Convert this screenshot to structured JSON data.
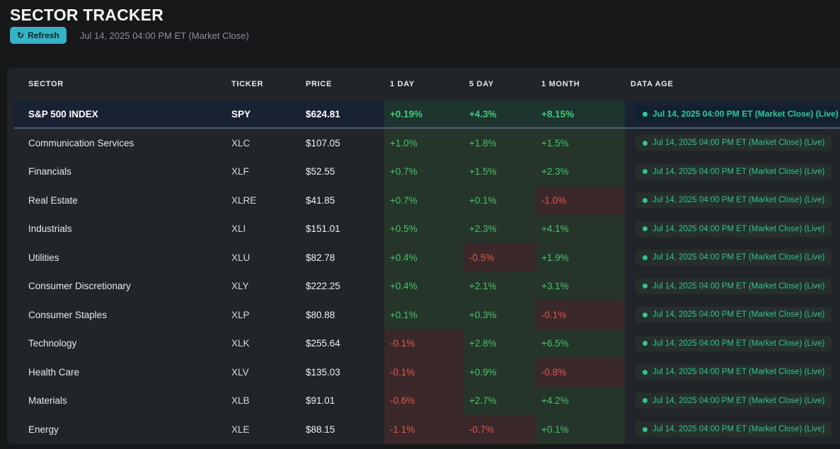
{
  "page": {
    "title": "SECTOR TRACKER",
    "timestamp": "Jul 14, 2025 04:00 PM ET (Market Close)"
  },
  "toolbar": {
    "refresh_label": "Refresh"
  },
  "icons": {
    "refresh_icon": "↻",
    "live_dot": "●"
  },
  "colors": {
    "accent_teal": "#33b3c4",
    "positive_green": "#46c46d",
    "negative_red": "#e8544e",
    "badge_green": "#33c391",
    "highlight_row_bg": "#192232",
    "highlight_row_border": "#4e5d7d",
    "positive_cell_bg": "#263529",
    "negative_cell_bg": "#3a282a",
    "card_bg": "#212529",
    "page_bg": "#17181a"
  },
  "table": {
    "columns": [
      "SECTOR",
      "TICKER",
      "PRICE",
      "1 DAY",
      "5 DAY",
      "1 MONTH",
      "DATA AGE"
    ],
    "rows": [
      {
        "sector": "S&P 500 INDEX",
        "ticker": "SPY",
        "price": "$624.81",
        "day1": "+0.19%",
        "day5": "+4.3%",
        "month1": "+8.15%",
        "data_age": "Jul 14, 2025 04:00 PM ET (Market Close) (Live)",
        "highlight": true
      },
      {
        "sector": "Communication Services",
        "ticker": "XLC",
        "price": "$107.05",
        "day1": "+1.0%",
        "day5": "+1.8%",
        "month1": "+1.5%",
        "data_age": "Jul 14, 2025 04:00 PM ET (Market Close) (Live)",
        "highlight": false
      },
      {
        "sector": "Financials",
        "ticker": "XLF",
        "price": "$52.55",
        "day1": "+0.7%",
        "day5": "+1.5%",
        "month1": "+2.3%",
        "data_age": "Jul 14, 2025 04:00 PM ET (Market Close) (Live)",
        "highlight": false
      },
      {
        "sector": "Real Estate",
        "ticker": "XLRE",
        "price": "$41.85",
        "day1": "+0.7%",
        "day5": "+0.1%",
        "month1": "-1.0%",
        "data_age": "Jul 14, 2025 04:00 PM ET (Market Close) (Live)",
        "highlight": false
      },
      {
        "sector": "Industrials",
        "ticker": "XLI",
        "price": "$151.01",
        "day1": "+0.5%",
        "day5": "+2.3%",
        "month1": "+4.1%",
        "data_age": "Jul 14, 2025 04:00 PM ET (Market Close) (Live)",
        "highlight": false
      },
      {
        "sector": "Utilities",
        "ticker": "XLU",
        "price": "$82.78",
        "day1": "+0.4%",
        "day5": "-0.5%",
        "month1": "+1.9%",
        "data_age": "Jul 14, 2025 04:00 PM ET (Market Close) (Live)",
        "highlight": false
      },
      {
        "sector": "Consumer Discretionary",
        "ticker": "XLY",
        "price": "$222.25",
        "day1": "+0.4%",
        "day5": "+2.1%",
        "month1": "+3.1%",
        "data_age": "Jul 14, 2025 04:00 PM ET (Market Close) (Live)",
        "highlight": false
      },
      {
        "sector": "Consumer Staples",
        "ticker": "XLP",
        "price": "$80.88",
        "day1": "+0.1%",
        "day5": "+0.3%",
        "month1": "-0.1%",
        "data_age": "Jul 14, 2025 04:00 PM ET (Market Close) (Live)",
        "highlight": false
      },
      {
        "sector": "Technology",
        "ticker": "XLK",
        "price": "$255.64",
        "day1": "-0.1%",
        "day5": "+2.8%",
        "month1": "+6.5%",
        "data_age": "Jul 14, 2025 04:00 PM ET (Market Close) (Live)",
        "highlight": false
      },
      {
        "sector": "Health Care",
        "ticker": "XLV",
        "price": "$135.03",
        "day1": "-0.1%",
        "day5": "+0.9%",
        "month1": "-0.8%",
        "data_age": "Jul 14, 2025 04:00 PM ET (Market Close) (Live)",
        "highlight": false
      },
      {
        "sector": "Materials",
        "ticker": "XLB",
        "price": "$91.01",
        "day1": "-0.6%",
        "day5": "+2.7%",
        "month1": "+4.2%",
        "data_age": "Jul 14, 2025 04:00 PM ET (Market Close) (Live)",
        "highlight": false
      },
      {
        "sector": "Energy",
        "ticker": "XLE",
        "price": "$88.15",
        "day1": "-1.1%",
        "day5": "-0.7%",
        "month1": "+0.1%",
        "data_age": "Jul 14, 2025 04:00 PM ET (Market Close) (Live)",
        "highlight": false
      }
    ]
  }
}
